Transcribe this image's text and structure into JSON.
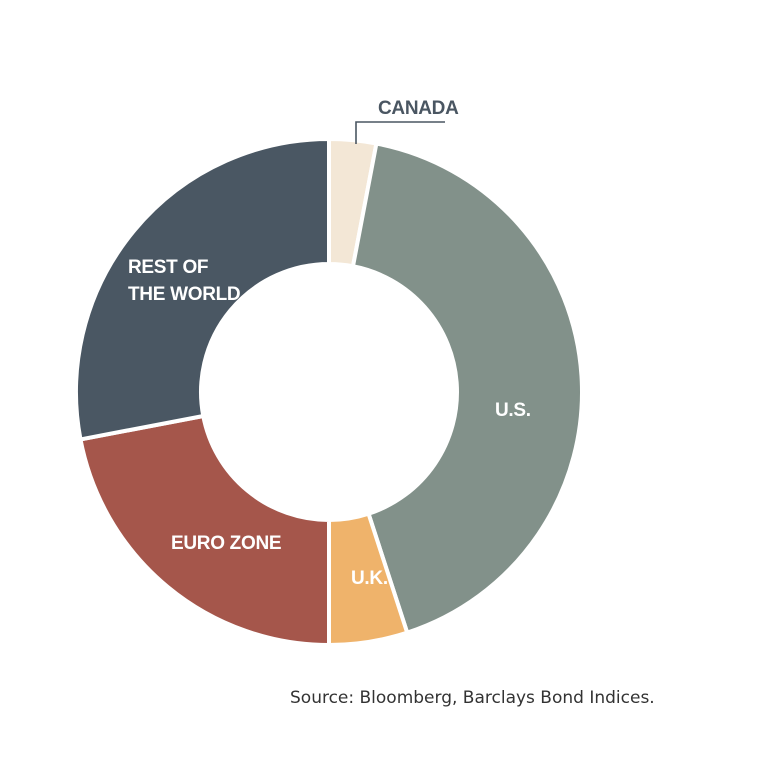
{
  "chart_data": {
    "type": "pie",
    "donut": true,
    "legend": "none",
    "slices": [
      {
        "name": "CANADA",
        "value": 3.0,
        "color": "#f3e7d6"
      },
      {
        "name": "U.S.",
        "value": 42.0,
        "color": "#82918a"
      },
      {
        "name": "U.K.",
        "value": 5.0,
        "color": "#efb36b"
      },
      {
        "name": "EURO ZONE",
        "value": 22.0,
        "color": "#a5564b"
      },
      {
        "name": "REST OF THE WORLD",
        "value": 28.0,
        "color": "#4a5763"
      }
    ]
  },
  "labels": {
    "canada": "CANADA",
    "us": "U.S.",
    "uk": "U.K.",
    "euro_zone": "EURO ZONE",
    "rest_line1": "REST OF",
    "rest_line2": "THE WORLD"
  },
  "source": "Source: Bloomberg, Barclays Bond Indices."
}
